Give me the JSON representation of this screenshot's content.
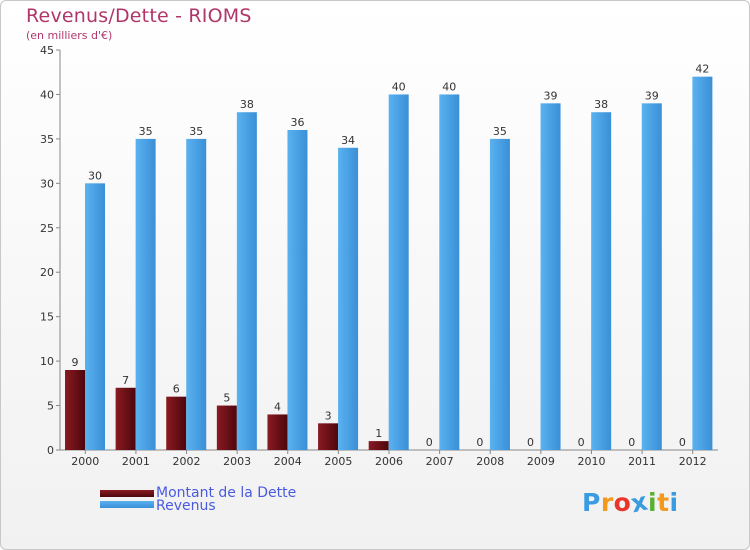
{
  "header": {
    "title": "Revenus/Dette - RIOMS",
    "subtitle": "(en milliers d'€)"
  },
  "legend": {
    "items": [
      {
        "label": "Montant de la Dette",
        "color": "#6b0f16"
      },
      {
        "label": "Revenus",
        "color": "#4aa3e6"
      }
    ]
  },
  "logo": {
    "text": "Proxiti",
    "letter_colors": [
      "#3a9be0",
      "#f39a1e",
      "#e8362a",
      "#3a9be0",
      "#5ab032",
      "#f39a1e",
      "#3a9be0"
    ]
  },
  "chart_data": {
    "type": "bar",
    "categories": [
      "2000",
      "2001",
      "2002",
      "2003",
      "2004",
      "2005",
      "2006",
      "2007",
      "2008",
      "2009",
      "2010",
      "2011",
      "2012"
    ],
    "series": [
      {
        "name": "Montant de la Dette",
        "color": "#6b0f16",
        "values": [
          9,
          7,
          6,
          5,
          4,
          3,
          1,
          0,
          0,
          0,
          0,
          0,
          0
        ]
      },
      {
        "name": "Revenus",
        "color": "#4aa3e6",
        "values": [
          30,
          35,
          35,
          38,
          36,
          34,
          40,
          40,
          35,
          39,
          38,
          39,
          42
        ]
      }
    ],
    "ylim": [
      0,
      45
    ],
    "yticks": [
      0,
      5,
      10,
      15,
      20,
      25,
      30,
      35,
      40,
      45
    ],
    "grid": false,
    "legend_position": "bottom-left"
  }
}
